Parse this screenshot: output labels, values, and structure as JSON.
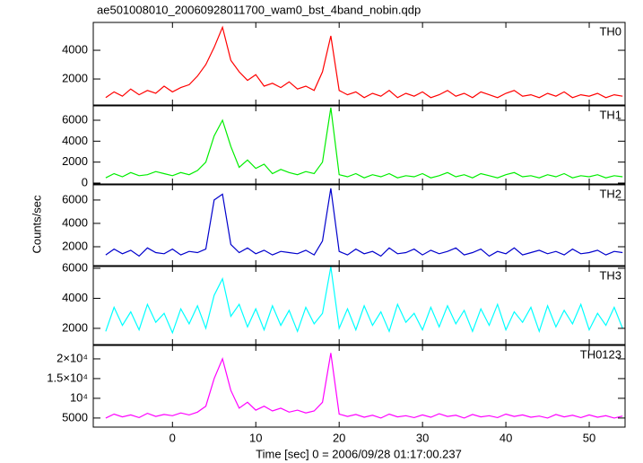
{
  "chart_data": [
    {
      "type": "line",
      "title": "ae501008010_20060928011700_wam0_bst_4band_nobin.qdp",
      "label": "TH0",
      "color": "#ff0000",
      "xlim": [
        -9.5,
        54.3
      ],
      "ylim": [
        190,
        5940
      ],
      "yticks": [
        2000,
        4000
      ],
      "x": [
        -8,
        -7,
        -6,
        -5,
        -4,
        -3,
        -2,
        -1,
        0,
        1,
        2,
        3,
        4,
        5,
        6,
        7,
        8,
        9,
        10,
        11,
        12,
        13,
        14,
        15,
        16,
        17,
        18,
        19,
        20,
        21,
        22,
        23,
        24,
        25,
        26,
        27,
        28,
        29,
        30,
        31,
        32,
        33,
        34,
        35,
        36,
        37,
        38,
        39,
        40,
        41,
        42,
        43,
        44,
        45,
        46,
        47,
        48,
        49,
        50,
        51,
        52,
        53,
        54
      ],
      "values": [
        700,
        1100,
        800,
        1300,
        900,
        1200,
        1000,
        1500,
        1100,
        1400,
        1600,
        2200,
        3000,
        4200,
        5600,
        3300,
        2500,
        1900,
        2300,
        1500,
        1700,
        1400,
        1800,
        1300,
        1500,
        1200,
        2500,
        5000,
        1200,
        900,
        1100,
        700,
        1000,
        800,
        1200,
        700,
        1000,
        800,
        1100,
        700,
        900,
        1200,
        800,
        1000,
        700,
        1100,
        900,
        700,
        1000,
        1200,
        800,
        900,
        700,
        1000,
        800,
        1100,
        700,
        900,
        800,
        1000,
        700,
        900,
        800
      ]
    },
    {
      "type": "line",
      "label": "TH1",
      "color": "#00ee00",
      "xlim": [
        -9.5,
        54.3
      ],
      "ylim": [
        -85,
        7370
      ],
      "yticks": [
        0,
        2000,
        4000,
        6000
      ],
      "x": [
        -8,
        -7,
        -6,
        -5,
        -4,
        -3,
        -2,
        -1,
        0,
        1,
        2,
        3,
        4,
        5,
        6,
        7,
        8,
        9,
        10,
        11,
        12,
        13,
        14,
        15,
        16,
        17,
        18,
        19,
        20,
        21,
        22,
        23,
        24,
        25,
        26,
        27,
        28,
        29,
        30,
        31,
        32,
        33,
        34,
        35,
        36,
        37,
        38,
        39,
        40,
        41,
        42,
        43,
        44,
        45,
        46,
        47,
        48,
        49,
        50,
        51,
        52,
        53,
        54
      ],
      "values": [
        500,
        900,
        600,
        1000,
        700,
        800,
        1100,
        900,
        700,
        1000,
        800,
        1200,
        2000,
        4500,
        6000,
        3500,
        1500,
        2200,
        1400,
        1800,
        900,
        1300,
        1000,
        800,
        1100,
        900,
        2000,
        7200,
        800,
        600,
        900,
        500,
        800,
        600,
        900,
        500,
        700,
        600,
        900,
        500,
        700,
        1000,
        600,
        800,
        500,
        900,
        700,
        500,
        800,
        1000,
        600,
        700,
        500,
        800,
        600,
        900,
        500,
        700,
        600,
        800,
        500,
        700,
        600
      ]
    },
    {
      "type": "line",
      "label": "TH2",
      "ylabel": "Counts/sec",
      "color": "#0000cc",
      "xlim": [
        -9.5,
        54.3
      ],
      "ylim": [
        385,
        7300
      ],
      "yticks": [
        2000,
        4000,
        6000
      ],
      "x": [
        -8,
        -7,
        -6,
        -5,
        -4,
        -3,
        -2,
        -1,
        0,
        1,
        2,
        3,
        4,
        5,
        6,
        7,
        8,
        9,
        10,
        11,
        12,
        13,
        14,
        15,
        16,
        17,
        18,
        19,
        20,
        21,
        22,
        23,
        24,
        25,
        26,
        27,
        28,
        29,
        30,
        31,
        32,
        33,
        34,
        35,
        36,
        37,
        38,
        39,
        40,
        41,
        42,
        43,
        44,
        45,
        46,
        47,
        48,
        49,
        50,
        51,
        52,
        53,
        54
      ],
      "values": [
        1300,
        1800,
        1400,
        1700,
        1200,
        1900,
        1500,
        1400,
        1800,
        1300,
        1600,
        1500,
        1800,
        6000,
        6500,
        2200,
        1500,
        1900,
        1400,
        1700,
        1300,
        1600,
        1500,
        1400,
        1700,
        1300,
        2500,
        7000,
        1600,
        1300,
        1800,
        1400,
        1600,
        1200,
        1900,
        1400,
        1500,
        1800,
        1300,
        1700,
        1400,
        1600,
        1900,
        1300,
        1500,
        1800,
        1200,
        1600,
        1400,
        1900,
        1300,
        1500,
        1700,
        1400,
        1600,
        1300,
        1800,
        1400,
        1500,
        1700,
        1300,
        1600,
        1500
      ]
    },
    {
      "type": "line",
      "label": "TH3",
      "color": "#00ffff",
      "xlim": [
        -9.5,
        54.3
      ],
      "ylim": [
        920,
        6120
      ],
      "yticks": [
        2000,
        4000,
        6000
      ],
      "x": [
        -8,
        -7,
        -6,
        -5,
        -4,
        -3,
        -2,
        -1,
        0,
        1,
        2,
        3,
        4,
        5,
        6,
        7,
        8,
        9,
        10,
        11,
        12,
        13,
        14,
        15,
        16,
        17,
        18,
        19,
        20,
        21,
        22,
        23,
        24,
        25,
        26,
        27,
        28,
        29,
        30,
        31,
        32,
        33,
        34,
        35,
        36,
        37,
        38,
        39,
        40,
        41,
        42,
        43,
        44,
        45,
        46,
        47,
        48,
        49,
        50,
        51,
        52,
        53,
        54
      ],
      "values": [
        1800,
        3400,
        2200,
        3100,
        1900,
        3600,
        2400,
        3000,
        1700,
        3300,
        2300,
        3500,
        2000,
        4200,
        5300,
        2800,
        3600,
        2100,
        3300,
        1900,
        3500,
        2200,
        3200,
        1800,
        3400,
        2300,
        3000,
        6100,
        2000,
        3300,
        1900,
        3500,
        2200,
        3100,
        1800,
        3600,
        2400,
        3000,
        1900,
        3400,
        2100,
        3500,
        2300,
        3200,
        1800,
        3300,
        2200,
        3600,
        1900,
        3100,
        2400,
        3400,
        1800,
        3500,
        2100,
        3200,
        2300,
        3600,
        1900,
        3000,
        2200,
        3400,
        2000
      ]
    },
    {
      "type": "line",
      "label": "TH0123",
      "color": "#ff00ff",
      "xlabel": "Time [sec] 0 = 2006/09/28 01:17:00.237",
      "xlim": [
        -9.5,
        54.3
      ],
      "xticks": [
        0,
        10,
        20,
        30,
        40,
        50
      ],
      "ylim": [
        2700,
        23400
      ],
      "yticks": [
        5000,
        {
          "value": 10000,
          "label": "10⁴"
        },
        {
          "value": 15000,
          "label": "1.5×10⁴"
        },
        {
          "value": 20000,
          "label": "2×10⁴"
        }
      ],
      "x": [
        -8,
        -7,
        -6,
        -5,
        -4,
        -3,
        -2,
        -1,
        0,
        1,
        2,
        3,
        4,
        5,
        6,
        7,
        8,
        9,
        10,
        11,
        12,
        13,
        14,
        15,
        16,
        17,
        18,
        19,
        20,
        21,
        22,
        23,
        24,
        25,
        26,
        27,
        28,
        29,
        30,
        31,
        32,
        33,
        34,
        35,
        36,
        37,
        38,
        39,
        40,
        41,
        42,
        43,
        44,
        45,
        46,
        47,
        48,
        49,
        50,
        51,
        52,
        53,
        54
      ],
      "values": [
        5000,
        6000,
        5300,
        5800,
        5100,
        6200,
        5400,
        5900,
        5600,
        6300,
        5800,
        6500,
        8000,
        15000,
        20000,
        12000,
        7500,
        9000,
        7000,
        8000,
        6800,
        7500,
        6500,
        7000,
        6300,
        6800,
        9000,
        21500,
        6000,
        5400,
        5900,
        5200,
        5700,
        5000,
        6000,
        5300,
        5600,
        5100,
        5800,
        5200,
        6100,
        5400,
        5700,
        5000,
        5900,
        5300,
        5600,
        5100,
        6000,
        5400,
        5800,
        5200,
        5500,
        5000,
        5900,
        5300,
        5700,
        5100,
        5800,
        5200,
        5600,
        5000,
        5500
      ]
    }
  ]
}
